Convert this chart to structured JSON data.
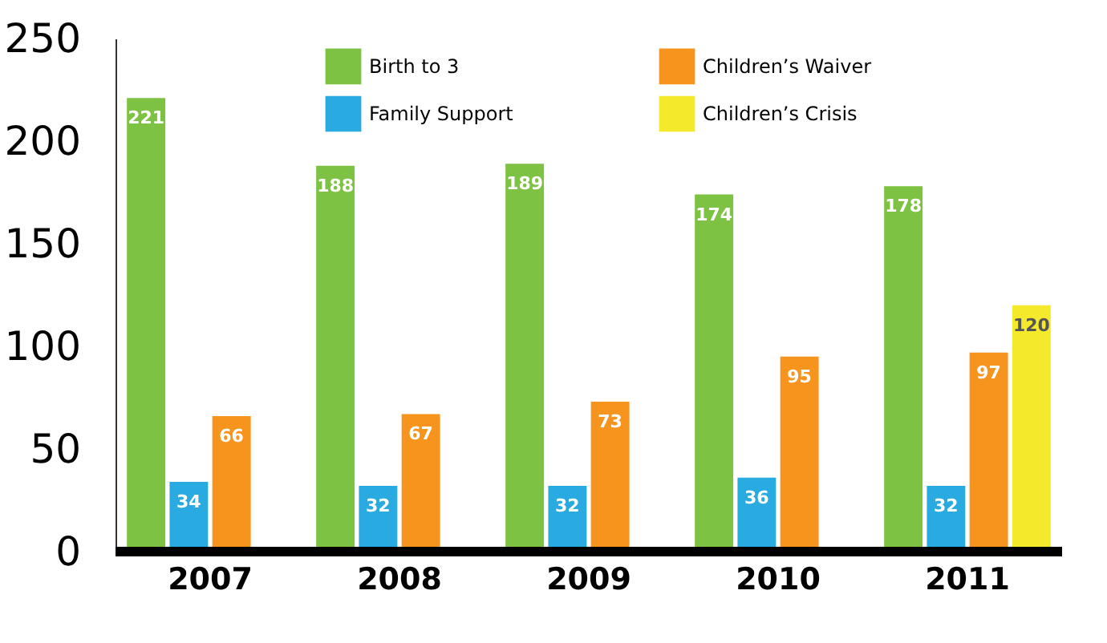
{
  "chart_data": {
    "type": "bar",
    "categories": [
      "2007",
      "2008",
      "2009",
      "2010",
      "2011"
    ],
    "series": [
      {
        "name": "Birth to 3",
        "color": "#7dc242",
        "values": [
          221,
          188,
          189,
          174,
          178
        ]
      },
      {
        "name": "Family Support",
        "color": "#29aae1",
        "values": [
          34,
          32,
          32,
          36,
          32
        ]
      },
      {
        "name": "Children’s Waiver",
        "color": "#f7941d",
        "values": [
          66,
          67,
          73,
          95,
          97
        ]
      },
      {
        "name": "Children’s Crisis",
        "color": "#f5e92b",
        "values": [
          null,
          null,
          null,
          null,
          120
        ]
      }
    ],
    "ylim": [
      0,
      250
    ],
    "yticks": [
      0,
      50,
      100,
      150,
      200,
      250
    ],
    "grid": false,
    "legend": "top",
    "data_labels": true
  }
}
